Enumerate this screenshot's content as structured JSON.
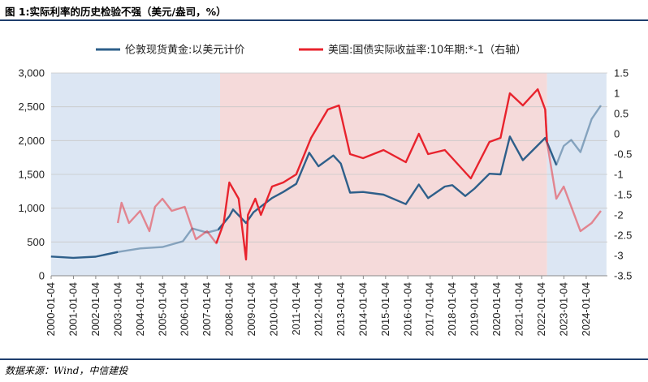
{
  "figure": {
    "title": "图 1:实际利率的历史检验不强（美元/盎司，%）",
    "source": "数据来源：Wind，中信建投"
  },
  "chart_data": {
    "type": "line",
    "legend_position": "top",
    "grid": "horizontal",
    "series": [
      {
        "name": "伦敦现货黄金:以美元计价",
        "axis": "left",
        "color": "#2e5f8a",
        "points": [
          [
            "2000-01",
            285
          ],
          [
            "2001-01",
            265
          ],
          [
            "2002-01",
            282
          ],
          [
            "2003-01",
            352
          ],
          [
            "2004-01",
            405
          ],
          [
            "2005-01",
            425
          ],
          [
            "2005-12",
            510
          ],
          [
            "2006-05",
            700
          ],
          [
            "2007-01",
            640
          ],
          [
            "2007-07",
            680
          ],
          [
            "2008-01",
            880
          ],
          [
            "2008-03",
            980
          ],
          [
            "2008-10",
            780
          ],
          [
            "2009-02",
            940
          ],
          [
            "2009-12",
            1150
          ],
          [
            "2010-06",
            1240
          ],
          [
            "2011-01",
            1360
          ],
          [
            "2011-08",
            1820
          ],
          [
            "2012-01",
            1620
          ],
          [
            "2012-09",
            1780
          ],
          [
            "2013-01",
            1660
          ],
          [
            "2013-06",
            1230
          ],
          [
            "2014-01",
            1240
          ],
          [
            "2014-12",
            1200
          ],
          [
            "2015-12",
            1060
          ],
          [
            "2016-07",
            1350
          ],
          [
            "2016-12",
            1150
          ],
          [
            "2017-09",
            1320
          ],
          [
            "2018-01",
            1340
          ],
          [
            "2018-08",
            1180
          ],
          [
            "2019-01",
            1290
          ],
          [
            "2019-09",
            1510
          ],
          [
            "2020-03",
            1500
          ],
          [
            "2020-08",
            2060
          ],
          [
            "2021-03",
            1710
          ],
          [
            "2022-03",
            2040
          ],
          [
            "2022-09",
            1640
          ],
          [
            "2023-01",
            1920
          ],
          [
            "2023-05",
            2010
          ],
          [
            "2023-10",
            1830
          ],
          [
            "2024-04",
            2320
          ],
          [
            "2024-09",
            2520
          ]
        ]
      },
      {
        "name": "美国:国债实际收益率:10年期:*-1（右轴）",
        "axis": "right",
        "color": "#e8232d",
        "points": [
          [
            "2003-01",
            -2.2
          ],
          [
            "2003-03",
            -1.7
          ],
          [
            "2003-07",
            -2.2
          ],
          [
            "2004-01",
            -1.9
          ],
          [
            "2004-06",
            -2.4
          ],
          [
            "2004-09",
            -1.8
          ],
          [
            "2005-01",
            -1.6
          ],
          [
            "2005-06",
            -1.9
          ],
          [
            "2006-01",
            -1.8
          ],
          [
            "2006-07",
            -2.6
          ],
          [
            "2007-01",
            -2.4
          ],
          [
            "2007-06",
            -2.7
          ],
          [
            "2007-10",
            -2.2
          ],
          [
            "2008-01",
            -1.2
          ],
          [
            "2008-06",
            -1.6
          ],
          [
            "2008-10",
            -3.1
          ],
          [
            "2008-11",
            -2.0
          ],
          [
            "2009-03",
            -1.6
          ],
          [
            "2009-06",
            -2.0
          ],
          [
            "2009-12",
            -1.3
          ],
          [
            "2010-06",
            -1.2
          ],
          [
            "2011-01",
            -1.0
          ],
          [
            "2011-09",
            -0.1
          ],
          [
            "2012-06",
            0.6
          ],
          [
            "2012-12",
            0.7
          ],
          [
            "2013-06",
            -0.5
          ],
          [
            "2014-01",
            -0.6
          ],
          [
            "2014-12",
            -0.4
          ],
          [
            "2015-12",
            -0.7
          ],
          [
            "2016-07",
            0.0
          ],
          [
            "2016-12",
            -0.5
          ],
          [
            "2017-09",
            -0.4
          ],
          [
            "2018-01",
            -0.6
          ],
          [
            "2018-11",
            -1.1
          ],
          [
            "2019-09",
            -0.2
          ],
          [
            "2020-03",
            -0.1
          ],
          [
            "2020-08",
            1.0
          ],
          [
            "2021-03",
            0.7
          ],
          [
            "2021-11",
            1.1
          ],
          [
            "2022-03",
            0.6
          ],
          [
            "2022-04",
            -0.2
          ],
          [
            "2022-09",
            -1.6
          ],
          [
            "2023-01",
            -1.3
          ],
          [
            "2023-10",
            -2.4
          ],
          [
            "2024-04",
            -2.2
          ],
          [
            "2024-09",
            -1.9
          ]
        ]
      }
    ],
    "x_axis": {
      "labels": [
        "2000-01-04",
        "2001-01-04",
        "2002-01-04",
        "2003-01-04",
        "2004-01-04",
        "2005-01-04",
        "2006-01-04",
        "2007-01-04",
        "2008-01-04",
        "2009-01-04",
        "2010-01-04",
        "2011-01-04",
        "2012-01-04",
        "2013-01-04",
        "2014-01-04",
        "2015-01-04",
        "2016-01-04",
        "2017-01-04",
        "2018-01-04",
        "2019-01-04",
        "2020-01-04",
        "2021-01-04",
        "2022-01-04",
        "2023-01-04",
        "2024-01-04"
      ]
    },
    "y_left": {
      "ylim": [
        0,
        3000
      ],
      "ticks": [
        "0",
        "500",
        "1,000",
        "1,500",
        "2,000",
        "2,500",
        "3,000"
      ]
    },
    "y_right": {
      "ylim": [
        -3.5,
        1.5
      ],
      "ticks": [
        "-3.5",
        "-3",
        "-2.5",
        "-2",
        "-1.5",
        "-1",
        "-0.5",
        "0",
        "0.5",
        "1",
        "1.5"
      ]
    },
    "shaded_regions": [
      {
        "start": "2000-01",
        "end": "2007-08",
        "color": "#dce6f3"
      },
      {
        "start": "2007-08",
        "end": "2022-04",
        "color": "#f5dada"
      },
      {
        "start": "2022-04",
        "end": "2024-12",
        "color": "#dce6f3"
      }
    ],
    "faded_segments": [
      {
        "start": "2003-01",
        "end": "2007-08"
      },
      {
        "start": "2022-04",
        "end": "2024-12"
      }
    ]
  }
}
